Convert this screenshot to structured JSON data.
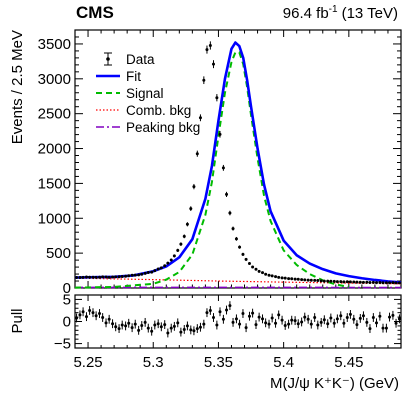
{
  "header": {
    "experiment": "CMS",
    "luminosity_value": "96.4 fb",
    "luminosity_exp": "-1",
    "energy": "(13 TeV)"
  },
  "chart_data": [
    {
      "panel": "main",
      "type": "line",
      "ylabel": "Events / 2.5 MeV",
      "xlim": [
        5.24,
        5.49
      ],
      "ylim": [
        0,
        3700
      ],
      "x_ticks": [
        5.25,
        5.3,
        5.35,
        5.4,
        5.45
      ],
      "y_ticks": [
        0,
        500,
        1000,
        1500,
        2000,
        2500,
        3000,
        3500
      ],
      "y_tick_labels": [
        "0",
        "500",
        "1000",
        "1500",
        "2000",
        "2500",
        "3000",
        "3500"
      ],
      "legend": {
        "placement": "top-left",
        "entries": [
          {
            "label": "Data",
            "style": "points",
            "color": "#000000"
          },
          {
            "label": "Fit",
            "style": "solid",
            "color": "#0000ff"
          },
          {
            "label": "Signal",
            "style": "dashed",
            "color": "#00bb00"
          },
          {
            "label": "Comb. bkg",
            "style": "dotted",
            "color": "#ff0000"
          },
          {
            "label": "Peaking bkg",
            "style": "dashdot",
            "color": "#8000c0"
          }
        ]
      },
      "series": [
        {
          "name": "Data",
          "type": "points",
          "x": [
            5.2412,
            5.2438,
            5.2462,
            5.2488,
            5.2512,
            5.2538,
            5.2562,
            5.2588,
            5.2612,
            5.2638,
            5.2662,
            5.2688,
            5.2712,
            5.2738,
            5.2762,
            5.2788,
            5.2812,
            5.2838,
            5.2862,
            5.2888,
            5.2912,
            5.2938,
            5.2962,
            5.2988,
            5.3012,
            5.3038,
            5.3062,
            5.3088,
            5.3112,
            5.3138,
            5.3162,
            5.3188,
            5.3212,
            5.3238,
            5.3262,
            5.3288,
            5.3312,
            5.3338,
            5.3362,
            5.3388,
            5.3412,
            5.3438,
            5.3462,
            5.3488,
            5.3512,
            5.3538,
            5.3562,
            5.3588,
            5.3612,
            5.3638,
            5.3662,
            5.3688,
            5.3712,
            5.3738,
            5.3762,
            5.3788,
            5.3812,
            5.3838,
            5.3862,
            5.3888,
            5.3912,
            5.3938,
            5.3962,
            5.3988,
            5.4012,
            5.4038,
            5.4062,
            5.4088,
            5.4112,
            5.4138,
            5.4162,
            5.4188,
            5.4212,
            5.4238,
            5.4262,
            5.4288,
            5.4312,
            5.4338,
            5.4362,
            5.4388,
            5.4412,
            5.4438,
            5.4462,
            5.4488,
            5.4512,
            5.4538,
            5.4562,
            5.4588,
            5.4612,
            5.4638,
            5.4662,
            5.4688,
            5.4712,
            5.4738,
            5.4762,
            5.4788,
            5.4812,
            5.4838,
            5.4862,
            5.4888
          ],
          "y": [
            150,
            151,
            153,
            157,
            155,
            154,
            152,
            155,
            159,
            157,
            153,
            158,
            160,
            162,
            165,
            169,
            175,
            183,
            184,
            189,
            198,
            210,
            223,
            227,
            250,
            272,
            289,
            319,
            356,
            401,
            460,
            540,
            629,
            741,
            914,
            1138,
            1454,
            1926,
            2441,
            2980,
            3419,
            3478,
            3210,
            2729,
            2204,
            1723,
            1342,
            1075,
            852,
            705,
            587,
            483,
            410,
            351,
            302,
            268,
            239,
            220,
            198,
            182,
            174,
            163,
            153,
            145,
            141,
            135,
            133,
            127,
            125,
            120,
            117,
            113,
            111,
            110,
            108,
            103,
            99,
            98,
            96,
            95,
            92,
            92,
            88,
            90,
            88,
            86,
            85,
            82,
            81,
            82,
            79,
            81,
            77,
            79,
            75,
            76,
            75,
            77,
            74,
            73
          ],
          "y_err": [
            12,
            12,
            12,
            13,
            12,
            12,
            12,
            12,
            13,
            13,
            12,
            13,
            13,
            13,
            13,
            13,
            13,
            14,
            14,
            14,
            14,
            14,
            15,
            15,
            16,
            16,
            17,
            18,
            19,
            20,
            21,
            23,
            25,
            27,
            30,
            34,
            38,
            44,
            49,
            55,
            58,
            59,
            57,
            52,
            47,
            42,
            37,
            33,
            29,
            27,
            24,
            22,
            20,
            19,
            17,
            16,
            15,
            15,
            14,
            13,
            13,
            13,
            12,
            12,
            12,
            12,
            12,
            11,
            11,
            11,
            11,
            11,
            11,
            10,
            10,
            10,
            10,
            10,
            10,
            10,
            10,
            10,
            9,
            9,
            9,
            9,
            9,
            9,
            9,
            9,
            9,
            9,
            9,
            9,
            9,
            9,
            9,
            9,
            9,
            9
          ]
        },
        {
          "name": "Fit",
          "type": "line",
          "x": [
            5.24,
            5.255,
            5.27,
            5.285,
            5.3,
            5.31,
            5.32,
            5.33,
            5.34,
            5.345,
            5.35,
            5.355,
            5.36,
            5.363,
            5.366,
            5.369,
            5.372,
            5.375,
            5.38,
            5.385,
            5.39,
            5.4,
            5.41,
            5.42,
            5.43,
            5.44,
            5.45,
            5.46,
            5.47,
            5.48,
            5.49
          ],
          "y": [
            150,
            155,
            160,
            180,
            240,
            310,
            440,
            700,
            1280,
            1750,
            2400,
            3000,
            3430,
            3520,
            3470,
            3300,
            2980,
            2600,
            2000,
            1480,
            1100,
            680,
            470,
            350,
            270,
            210,
            170,
            140,
            115,
            95,
            80
          ]
        },
        {
          "name": "Signal",
          "type": "line",
          "x": [
            5.24,
            5.27,
            5.3,
            5.31,
            5.32,
            5.33,
            5.34,
            5.345,
            5.35,
            5.355,
            5.36,
            5.363,
            5.366,
            5.369,
            5.372,
            5.375,
            5.38,
            5.385,
            5.39,
            5.4,
            5.41,
            5.42,
            5.43,
            5.44,
            5.45
          ],
          "y": [
            5,
            15,
            60,
            120,
            230,
            480,
            1050,
            1520,
            2180,
            2800,
            3240,
            3380,
            3380,
            3210,
            2880,
            2480,
            1860,
            1320,
            960,
            540,
            330,
            200,
            110,
            50,
            15
          ]
        },
        {
          "name": "Comb. bkg",
          "type": "line",
          "x": [
            5.24,
            5.3,
            5.35,
            5.4,
            5.45,
            5.49
          ],
          "y": [
            142,
            120,
            100,
            84,
            70,
            60
          ]
        },
        {
          "name": "Peaking bkg",
          "type": "line",
          "x": [
            5.24,
            5.3,
            5.35,
            5.4,
            5.45,
            5.49
          ],
          "y": [
            8,
            9,
            9,
            8,
            7,
            6
          ]
        }
      ]
    },
    {
      "panel": "pull",
      "type": "scatter",
      "ylabel": "Pull",
      "xlabel": "M(J/ψ K⁺K⁻) (GeV)",
      "xlim": [
        5.24,
        5.49
      ],
      "ylim": [
        -6,
        6
      ],
      "x_ticks": [
        5.25,
        5.3,
        5.35,
        5.4,
        5.45
      ],
      "x_tick_labels": [
        "5.25",
        "5.3",
        "5.35",
        "5.4",
        "5.45"
      ],
      "y_ticks": [
        -5,
        0,
        5
      ],
      "y_tick_labels": [
        "−5",
        "0",
        "5"
      ],
      "series": [
        {
          "name": "Pull",
          "x": [
            5.2412,
            5.2438,
            5.2462,
            5.2488,
            5.2512,
            5.2538,
            5.2562,
            5.2588,
            5.2612,
            5.2638,
            5.2662,
            5.2688,
            5.2712,
            5.2738,
            5.2762,
            5.2788,
            5.2812,
            5.2838,
            5.2862,
            5.2888,
            5.2912,
            5.2938,
            5.2962,
            5.2988,
            5.3012,
            5.3038,
            5.3062,
            5.3088,
            5.3112,
            5.3138,
            5.3162,
            5.3188,
            5.3212,
            5.3238,
            5.3262,
            5.3288,
            5.3312,
            5.3338,
            5.3362,
            5.3388,
            5.3412,
            5.3438,
            5.3462,
            5.3488,
            5.3512,
            5.3538,
            5.3562,
            5.3588,
            5.3612,
            5.3638,
            5.3662,
            5.3688,
            5.3712,
            5.3738,
            5.3762,
            5.3788,
            5.3812,
            5.3838,
            5.3862,
            5.3888,
            5.3912,
            5.3938,
            5.3962,
            5.3988,
            5.4012,
            5.4038,
            5.4062,
            5.4088,
            5.4112,
            5.4138,
            5.4162,
            5.4188,
            5.4212,
            5.4238,
            5.4262,
            5.4288,
            5.4312,
            5.4338,
            5.4362,
            5.4388,
            5.4412,
            5.4438,
            5.4462,
            5.4488,
            5.4512,
            5.4538,
            5.4562,
            5.4588,
            5.4612,
            5.4638,
            5.4662,
            5.4688,
            5.4712,
            5.4738,
            5.4762,
            5.4788,
            5.4812,
            5.4838,
            5.4862,
            5.4888
          ],
          "y": [
            0.8,
            1.5,
            2.2,
            1.1,
            2.5,
            2.0,
            1.3,
            1.8,
            0.9,
            -0.3,
            0.5,
            -0.5,
            -1.2,
            -1.6,
            -0.8,
            -1.0,
            -0.4,
            -1.4,
            -0.6,
            -2.0,
            -0.9,
            -0.2,
            -1.5,
            -2.2,
            -0.8,
            -0.5,
            -1.2,
            -0.7,
            -2.6,
            -1.5,
            -1.1,
            -0.3,
            -2.4,
            -1.8,
            -1.0,
            -1.9,
            -2.1,
            -1.6,
            -1.3,
            -0.6,
            2.0,
            2.5,
            0.9,
            -0.8,
            2.2,
            0.5,
            2.6,
            3.6,
            -0.2,
            0.6,
            -0.6,
            1.8,
            -1.4,
            1.2,
            1.9,
            -0.7,
            1.0,
            0.6,
            -0.3,
            -0.6,
            0.8,
            -0.4,
            1.5,
            0.3,
            -0.9,
            -0.6,
            0.3,
            0.2,
            -0.5,
            -0.1,
            1.0,
            0.5,
            -0.6,
            0.9,
            -0.8,
            -0.2,
            0.4,
            -0.5,
            0.8,
            -0.4,
            0.6,
            1.3,
            -0.4,
            0.9,
            1.6,
            0.5,
            -0.7,
            0.7,
            1.3,
            -0.2,
            -1.6,
            0.9,
            -0.3,
            1.2,
            -1.5,
            -1.5,
            1.0,
            1.4,
            -0.4,
            0.6
          ]
        }
      ]
    }
  ]
}
